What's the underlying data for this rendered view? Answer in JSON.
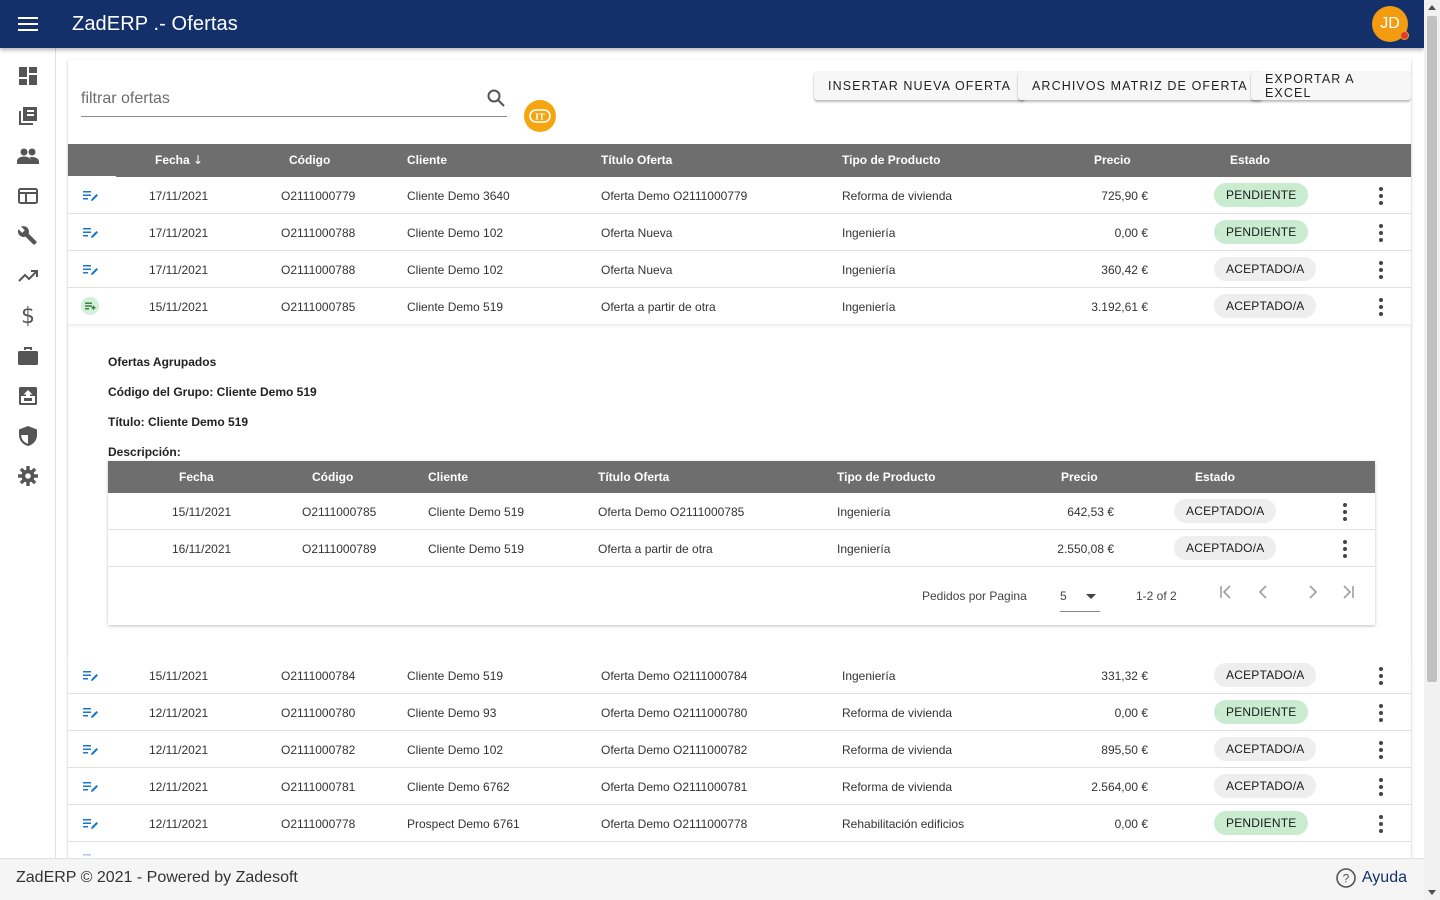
{
  "header": {
    "title": "ZadERP .- Ofertas",
    "avatar_initials": "JD"
  },
  "sidebar": {
    "items": [
      {
        "icon": "dashboard-icon"
      },
      {
        "icon": "library-icon"
      },
      {
        "icon": "people-icon"
      },
      {
        "icon": "web-icon"
      },
      {
        "icon": "wrench-icon"
      },
      {
        "icon": "trending-up-icon"
      },
      {
        "icon": "dollar-icon"
      },
      {
        "icon": "briefcase-icon"
      },
      {
        "icon": "archive-upload-icon"
      },
      {
        "icon": "shield-icon"
      },
      {
        "icon": "gear-icon"
      }
    ]
  },
  "toolbar": {
    "filter_placeholder": "filtrar ofertas",
    "filter_value": "",
    "insert_label": "INSERTAR NUEVA OFERTA",
    "templates_label": "ARCHIVOS MATRIZ DE OFERTA",
    "export_label": "EXPORTAR A EXCEL"
  },
  "table": {
    "columns": {
      "fecha": "Fecha",
      "codigo": "Código",
      "cliente": "Cliente",
      "titulo": "Título Oferta",
      "tipo": "Tipo de Producto",
      "precio": "Precio",
      "estado": "Estado"
    },
    "rows_top": [
      {
        "fecha": "17/11/2021",
        "codigo": "O2111000779",
        "cliente": "Cliente Demo 3640",
        "titulo": "Oferta Demo O2111000779",
        "tipo": "Reforma de vivienda",
        "precio": "725,90 €",
        "estado": "PENDIENTE",
        "status_kind": "pend"
      },
      {
        "fecha": "17/11/2021",
        "codigo": "O2111000788",
        "cliente": "Cliente Demo 102",
        "titulo": "Oferta Nueva",
        "tipo": "Ingeniería",
        "precio": "0,00 €",
        "estado": "PENDIENTE",
        "status_kind": "pend"
      },
      {
        "fecha": "17/11/2021",
        "codigo": "O2111000788",
        "cliente": "Cliente Demo 102",
        "titulo": "Oferta Nueva",
        "tipo": "Ingeniería",
        "precio": "360,42 €",
        "estado": "ACEPTADO/A",
        "status_kind": "acc"
      },
      {
        "fecha": "15/11/2021",
        "codigo": "O2111000785",
        "cliente": "Cliente Demo 519",
        "titulo": "Oferta a partir de otra",
        "tipo": "Ingeniería",
        "precio": "3.192,61 €",
        "estado": "ACEPTADO/A",
        "status_kind": "acc"
      }
    ],
    "rows_bottom": [
      {
        "fecha": "15/11/2021",
        "codigo": "O2111000784",
        "cliente": "Cliente Demo 519",
        "titulo": "Oferta Demo O2111000784",
        "tipo": "Ingeniería",
        "precio": "331,32 €",
        "estado": "ACEPTADO/A",
        "status_kind": "acc"
      },
      {
        "fecha": "12/11/2021",
        "codigo": "O2111000780",
        "cliente": "Cliente Demo 93",
        "titulo": "Oferta Demo O2111000780",
        "tipo": "Reforma de vivienda",
        "precio": "0,00 €",
        "estado": "PENDIENTE",
        "status_kind": "pend"
      },
      {
        "fecha": "12/11/2021",
        "codigo": "O2111000782",
        "cliente": "Cliente Demo 102",
        "titulo": "Oferta Demo O2111000782",
        "tipo": "Reforma de vivienda",
        "precio": "895,50 €",
        "estado": "ACEPTADO/A",
        "status_kind": "acc"
      },
      {
        "fecha": "12/11/2021",
        "codigo": "O2111000781",
        "cliente": "Cliente Demo 6762",
        "titulo": "Oferta Demo O2111000781",
        "tipo": "Reforma de vivienda",
        "precio": "2.564,00 €",
        "estado": "ACEPTADO/A",
        "status_kind": "acc"
      },
      {
        "fecha": "12/11/2021",
        "codigo": "O2111000778",
        "cliente": "Prospect Demo 6761",
        "titulo": "Oferta Demo O2111000778",
        "tipo": "Rehabilitación edificios",
        "precio": "0,00 €",
        "estado": "PENDIENTE",
        "status_kind": "pend"
      }
    ]
  },
  "expanded": {
    "heading": "Ofertas Agrupados",
    "group_code": "Código del Grupo: Cliente Demo 519",
    "group_title": "Título: Cliente Demo 519",
    "description_label": "Descripción:",
    "rows": [
      {
        "fecha": "15/11/2021",
        "codigo": "O2111000785",
        "cliente": "Cliente Demo 519",
        "titulo": "Oferta Demo O2111000785",
        "tipo": "Ingeniería",
        "precio": "642,53 €",
        "estado": "ACEPTADO/A"
      },
      {
        "fecha": "16/11/2021",
        "codigo": "O2111000789",
        "cliente": "Cliente Demo 519",
        "titulo": "Oferta a partir de otra",
        "tipo": "Ingeniería",
        "precio": "2.550,08 €",
        "estado": "ACEPTADO/A"
      }
    ],
    "pager": {
      "label": "Pedidos por Pagina",
      "page_size": "5",
      "range": "1-2 of 2"
    }
  },
  "footer": {
    "copyright": "ZadERP © 2021 - Powered by Zadesoft",
    "help_label": "Ayuda"
  },
  "colors": {
    "primary": "#14306b",
    "accent": "#f39c12",
    "pending_chip": "#c9ecd1",
    "accepted_chip": "#eeeeee",
    "table_header": "#6e6e6e"
  }
}
